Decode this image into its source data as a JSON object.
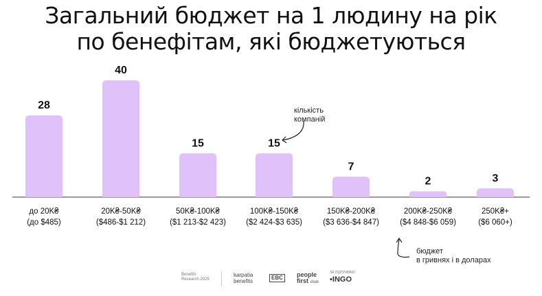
{
  "title": {
    "line1": "Загальний бюджет на 1 людину на рік",
    "line2": "по бенефітам, які бюджетуються"
  },
  "colors": {
    "bar": "#E1C1FA",
    "axis": "#333333",
    "text": "#111111"
  },
  "chart_data": {
    "type": "bar",
    "categories": [
      {
        "line1": "до 20K₴",
        "line2": "(до $485)"
      },
      {
        "line1": "20K₴-50K₴",
        "line2": "($486-$1 212)"
      },
      {
        "line1": "50K₴-100K₴",
        "line2": "($1 213-$2 423)"
      },
      {
        "line1": "100K₴-150K₴",
        "line2": "($2 424-$3 635)"
      },
      {
        "line1": "150K₴-200K₴",
        "line2": "($3 636-$4 847)"
      },
      {
        "line1": "200K₴-250K₴",
        "line2": "($4 848-$6 059)"
      },
      {
        "line1": "250K₴+",
        "line2": "($6 060+)"
      }
    ],
    "values": [
      28,
      40,
      15,
      15,
      7,
      2,
      3
    ],
    "grid": false
  },
  "annotations": {
    "count": {
      "line1": "кількість",
      "line2": "компаній"
    },
    "budget": {
      "line1": "бюджет",
      "line2": "в гривнях і в доларах"
    }
  },
  "footer": {
    "research_line1": "Benefits",
    "research_line2": "Research 2025",
    "karpatia_line1": "karpatia",
    "karpatia_line2": "benefits",
    "ebc": "EBC",
    "people_line1": "people",
    "people_line2": "first",
    "people_club": "club",
    "partner_note": "ЗА ПІДТРИМКИ",
    "ingo": "INGO"
  }
}
